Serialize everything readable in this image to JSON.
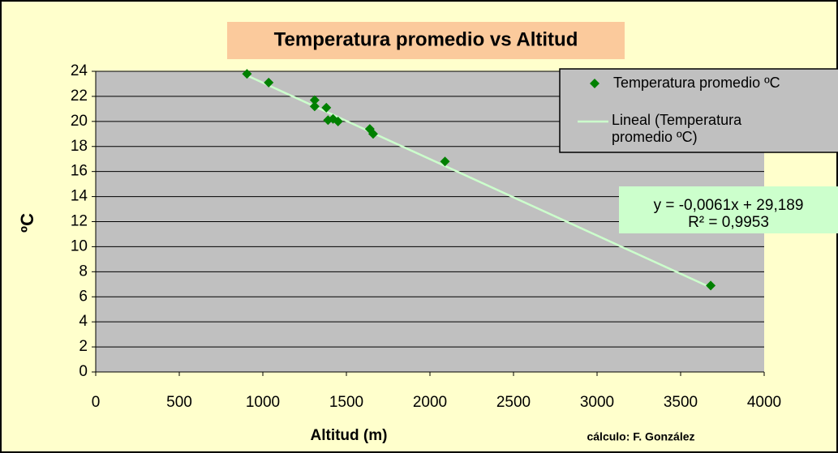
{
  "chart_data": {
    "type": "scatter",
    "title": "Temperatura promedio vs Altitud",
    "x_label": "Altitud (m)",
    "y_label": "ºC",
    "credit": "cálculo: F. González",
    "series": [
      {
        "name": "Temperatura promedio ºC",
        "color": "#008000",
        "x": [
          905,
          1035,
          1310,
          1310,
          1380,
          1390,
          1420,
          1450,
          1640,
          1660,
          2090,
          3680
        ],
        "values": [
          23.8,
          23.1,
          21.7,
          21.2,
          21.1,
          20.1,
          20.2,
          20.0,
          19.4,
          19.0,
          16.8,
          6.9
        ]
      }
    ],
    "trendline": {
      "name": "Lineal (Temperatura promedio ºC)",
      "color": "#ccffcc",
      "slope": -0.0061,
      "intercept": 29.189,
      "equation": "y = -0,0061x + 29,189",
      "r_squared": "R² = 0,9953"
    },
    "xlim": [
      0,
      4000
    ],
    "xticks": [
      0,
      500,
      1000,
      1500,
      2000,
      2500,
      3000,
      3500,
      4000
    ],
    "ylim": [
      0,
      24
    ],
    "yticks": [
      0,
      2,
      4,
      6,
      8,
      10,
      12,
      14,
      16,
      18,
      20,
      22,
      24
    ],
    "grid": true
  }
}
